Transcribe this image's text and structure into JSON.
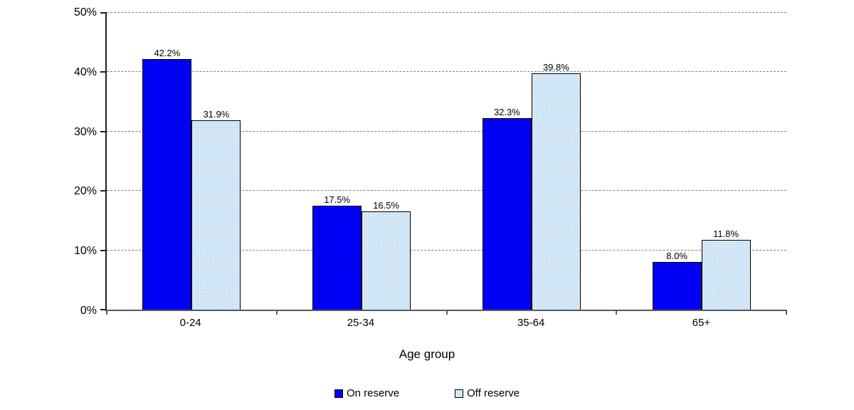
{
  "chart_data": {
    "type": "bar",
    "title": "",
    "xlabel": "Age group",
    "ylabel": "",
    "categories": [
      "0-24",
      "25-34",
      "35-64",
      "65+"
    ],
    "series": [
      {
        "name": "On reserve",
        "pattern": "solid",
        "color": "#0101f6",
        "values": [
          42.2,
          17.5,
          32.3,
          8.0
        ],
        "labels": [
          "42.2%",
          "17.5%",
          "32.3%",
          "8.0%"
        ]
      },
      {
        "name": "Off reserve",
        "pattern": "dotted",
        "color": "#cce3f5",
        "values": [
          31.9,
          16.5,
          39.8,
          11.8
        ],
        "labels": [
          "31.9%",
          "16.5%",
          "39.8%",
          "11.8%"
        ]
      }
    ],
    "ylim": [
      0,
      50
    ],
    "yticks": [
      0,
      10,
      20,
      30,
      40,
      50
    ],
    "ytick_labels": [
      "0%",
      "10%",
      "20%",
      "30%",
      "40%",
      "50%"
    ],
    "grid": "horizontal-dashed",
    "legend_position": "bottom-center"
  },
  "colors": {
    "bar_on_reserve": "#0101f6",
    "bar_off_reserve": "#cce3f5",
    "bar_border": "#000000",
    "gridline": "#7f7f7f",
    "y_axis": "#1f1f1f",
    "x_axis": "#595959",
    "background": "#ffffff",
    "text": "#000000"
  }
}
